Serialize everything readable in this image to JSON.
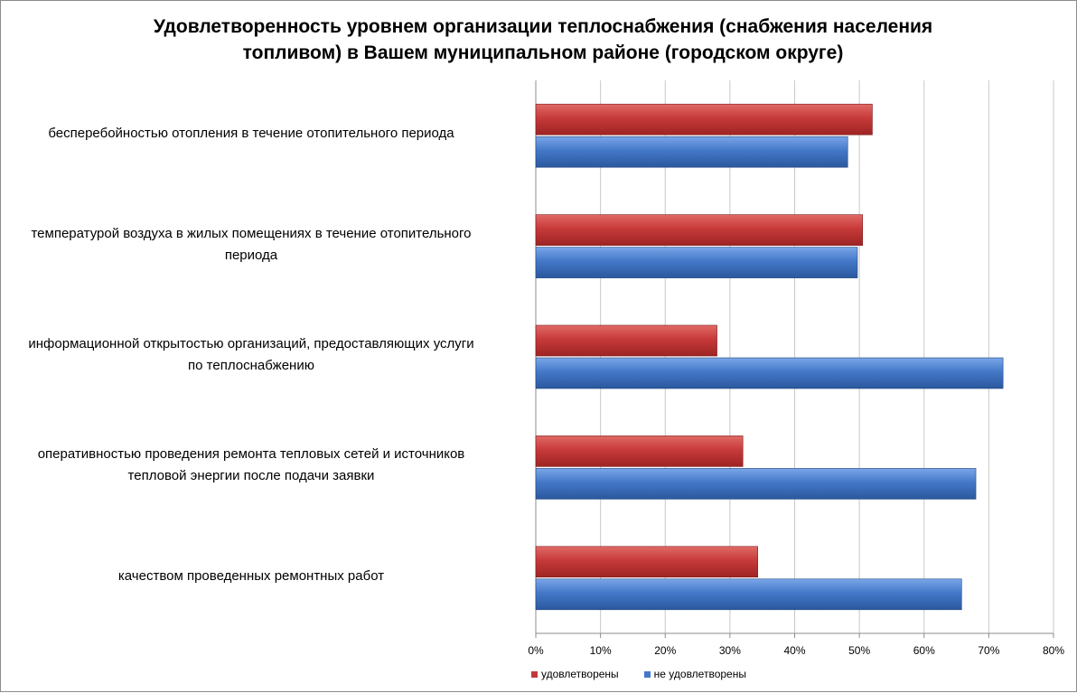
{
  "chart_data": {
    "type": "bar",
    "orientation": "horizontal",
    "title": "Удовлетворенность уровнем организации теплоснабжения (снабжения населения топливом) в Вашем муниципальном районе (городском округе)",
    "title_lines": [
      "Удовлетворенность уровнем организации теплоснабжения (снабжения населения",
      "топливом) в Вашем муниципальном районе (городском округе)"
    ],
    "categories": [
      "бесперебойностью  отопления в течение отопительного периода",
      "температурой  воздуха в жилых помещениях в течение отопительного периода",
      "информационной открытостью  организаций, предоставляющих услуги по теплоснабжению",
      "оперативностью  проведения ремонта тепловых сетей и источников тепловой энергии после подачи заявки",
      "качеством  проведенных ремонтных работ"
    ],
    "category_lines": [
      [
        "бесперебойностью  отопления в течение отопительного периода"
      ],
      [
        "температурой  воздуха в жилых помещениях в течение отопительного",
        "периода"
      ],
      [
        "информационной открытостью  организаций, предоставляющих услуги",
        "по теплоснабжению"
      ],
      [
        "оперативностью  проведения ремонта тепловых сетей и источников",
        "тепловой энергии после подачи заявки"
      ],
      [
        "качеством  проведенных ремонтных работ"
      ]
    ],
    "series": [
      {
        "name": "удовлетворены",
        "color": "#c0393b",
        "values": [
          52,
          50.5,
          28,
          32,
          34.3
        ]
      },
      {
        "name": "не удовлетворены",
        "color": "#4478c8",
        "values": [
          48.2,
          49.7,
          72.2,
          68,
          65.8
        ]
      }
    ],
    "xlim": [
      0,
      80
    ],
    "xticks": [
      "0%",
      "10%",
      "20%",
      "30%",
      "40%",
      "50%",
      "60%",
      "70%",
      "80%"
    ],
    "grid": true,
    "legend_position": "bottom"
  }
}
